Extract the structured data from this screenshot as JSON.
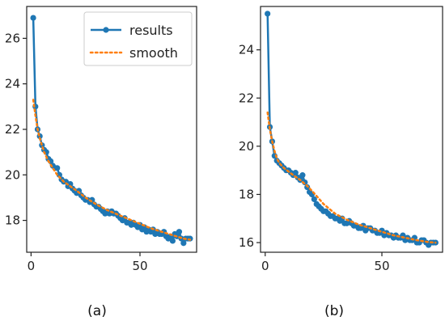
{
  "colors": {
    "results": "#1f77b4",
    "smooth": "#ff7f0e",
    "axis": "#222222"
  },
  "legend": {
    "placement": "top-right",
    "panel": 0,
    "entries": [
      "results",
      "smooth"
    ]
  },
  "chart_data": [
    {
      "type": "line",
      "caption": "(a)",
      "xlim": [
        -2,
        76
      ],
      "ylim": [
        16.6,
        27.4
      ],
      "xticks": [
        0,
        50
      ],
      "yticks": [
        18,
        20,
        22,
        24,
        26
      ],
      "grid": false,
      "series": [
        {
          "name": "results",
          "x": [
            1,
            2,
            3,
            4,
            5,
            6,
            7,
            8,
            9,
            10,
            11,
            12,
            13,
            14,
            15,
            16,
            17,
            18,
            19,
            20,
            21,
            22,
            23,
            24,
            25,
            26,
            27,
            28,
            29,
            30,
            31,
            32,
            33,
            34,
            35,
            36,
            37,
            38,
            39,
            40,
            41,
            42,
            43,
            44,
            45,
            46,
            47,
            48,
            49,
            50,
            51,
            52,
            53,
            54,
            55,
            56,
            57,
            58,
            59,
            60,
            61,
            62,
            63,
            64,
            65,
            66,
            67,
            68,
            69,
            70,
            71,
            72,
            73
          ],
          "y": [
            26.9,
            23.0,
            22.0,
            21.7,
            21.3,
            21.1,
            21.0,
            20.7,
            20.6,
            20.4,
            20.3,
            20.3,
            20.0,
            19.8,
            19.7,
            19.7,
            19.5,
            19.6,
            19.4,
            19.3,
            19.2,
            19.3,
            19.1,
            19.0,
            18.9,
            18.9,
            18.8,
            18.9,
            18.7,
            18.6,
            18.6,
            18.5,
            18.4,
            18.3,
            18.4,
            18.3,
            18.4,
            18.3,
            18.3,
            18.2,
            18.1,
            18.0,
            18.1,
            17.9,
            17.9,
            17.8,
            17.9,
            17.8,
            17.7,
            17.8,
            17.6,
            17.7,
            17.5,
            17.6,
            17.5,
            17.6,
            17.4,
            17.5,
            17.4,
            17.4,
            17.5,
            17.3,
            17.2,
            17.3,
            17.1,
            17.4,
            17.3,
            17.5,
            17.2,
            17.0,
            17.2,
            17.2,
            17.2
          ]
        },
        {
          "name": "smooth",
          "x": [
            1,
            2,
            3,
            4,
            5,
            6,
            8,
            10,
            12,
            15,
            18,
            21,
            25,
            30,
            35,
            40,
            45,
            50,
            55,
            60,
            65,
            70,
            73
          ],
          "y": [
            23.3,
            22.6,
            22.0,
            21.6,
            21.3,
            21.0,
            20.6,
            20.3,
            20.0,
            19.7,
            19.5,
            19.3,
            19.0,
            18.7,
            18.45,
            18.25,
            18.05,
            17.85,
            17.65,
            17.5,
            17.35,
            17.2,
            17.15
          ]
        }
      ]
    },
    {
      "type": "line",
      "caption": "(b)",
      "xlim": [
        -2,
        76
      ],
      "ylim": [
        15.6,
        25.8
      ],
      "xticks": [
        0,
        50
      ],
      "yticks": [
        16,
        18,
        20,
        22,
        24
      ],
      "grid": false,
      "series": [
        {
          "name": "results",
          "x": [
            1,
            2,
            3,
            4,
            5,
            6,
            7,
            8,
            9,
            10,
            11,
            12,
            13,
            14,
            15,
            16,
            17,
            18,
            19,
            20,
            21,
            22,
            23,
            24,
            25,
            26,
            27,
            28,
            29,
            30,
            31,
            32,
            33,
            34,
            35,
            36,
            37,
            38,
            39,
            40,
            41,
            42,
            43,
            44,
            45,
            46,
            47,
            48,
            49,
            50,
            51,
            52,
            53,
            54,
            55,
            56,
            57,
            58,
            59,
            60,
            61,
            62,
            63,
            64,
            65,
            66,
            67,
            68,
            69,
            70,
            71,
            72,
            73
          ],
          "y": [
            25.5,
            20.8,
            20.2,
            19.6,
            19.4,
            19.3,
            19.2,
            19.1,
            19.0,
            19.0,
            18.9,
            18.8,
            18.9,
            18.7,
            18.6,
            18.8,
            18.5,
            18.3,
            18.1,
            18.0,
            17.8,
            17.6,
            17.5,
            17.4,
            17.3,
            17.3,
            17.2,
            17.1,
            17.1,
            17.0,
            17.0,
            16.9,
            17.0,
            16.8,
            16.8,
            16.9,
            16.8,
            16.7,
            16.7,
            16.6,
            16.6,
            16.7,
            16.5,
            16.6,
            16.6,
            16.5,
            16.5,
            16.4,
            16.4,
            16.5,
            16.3,
            16.4,
            16.3,
            16.3,
            16.2,
            16.3,
            16.2,
            16.2,
            16.3,
            16.1,
            16.2,
            16.1,
            16.1,
            16.2,
            16.0,
            16.0,
            16.1,
            16.1,
            16.0,
            15.9,
            16.0,
            16.0,
            16.0
          ]
        },
        {
          "name": "smooth",
          "x": [
            1,
            2,
            3,
            4,
            5,
            6,
            8,
            10,
            12,
            15,
            18,
            21,
            25,
            30,
            35,
            40,
            45,
            50,
            55,
            60,
            65,
            70,
            73
          ],
          "y": [
            21.4,
            20.7,
            20.2,
            19.8,
            19.5,
            19.3,
            19.1,
            18.95,
            18.8,
            18.6,
            18.35,
            18.05,
            17.6,
            17.2,
            16.95,
            16.75,
            16.6,
            16.45,
            16.3,
            16.2,
            16.1,
            16.02,
            16.0
          ]
        }
      ]
    }
  ]
}
